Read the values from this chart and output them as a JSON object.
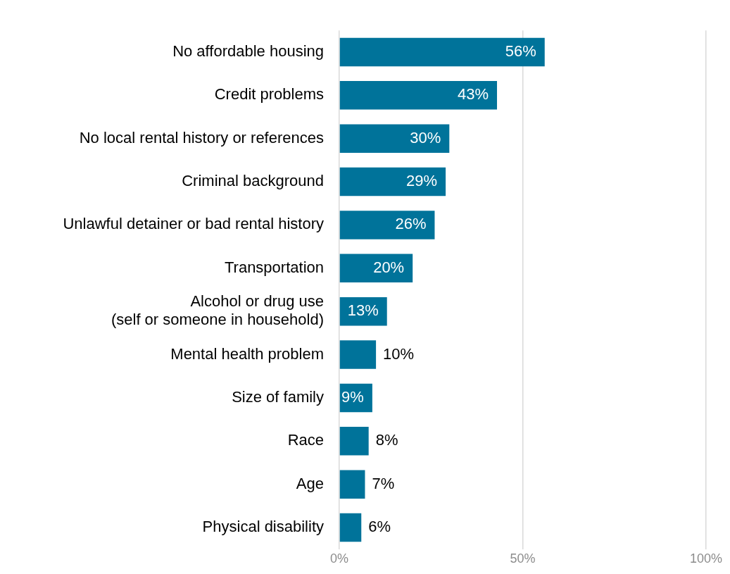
{
  "chart_data": {
    "type": "bar",
    "orientation": "horizontal",
    "categories": [
      "No affordable housing",
      "Credit problems",
      "No local rental history or references",
      "Criminal background",
      "Unlawful detainer or bad rental history",
      "Transportation",
      "Alcohol or drug use\n(self or someone in household)",
      "Mental health problem",
      "Size of family",
      "Race",
      "Age",
      "Physical disability"
    ],
    "values": [
      56,
      43,
      30,
      29,
      26,
      20,
      13,
      10,
      9,
      8,
      7,
      6
    ],
    "value_labels": [
      "56%",
      "43%",
      "30%",
      "29%",
      "26%",
      "20%",
      "13%",
      "10%",
      "9%",
      "8%",
      "7%",
      "6%"
    ],
    "color": "#00739a",
    "xlim": [
      0,
      100
    ],
    "xticks": [
      {
        "value": 0,
        "label": "0%"
      },
      {
        "value": 50,
        "label": "50%"
      },
      {
        "value": 100,
        "label": "100%"
      }
    ],
    "grid": "x",
    "legend": false
  }
}
